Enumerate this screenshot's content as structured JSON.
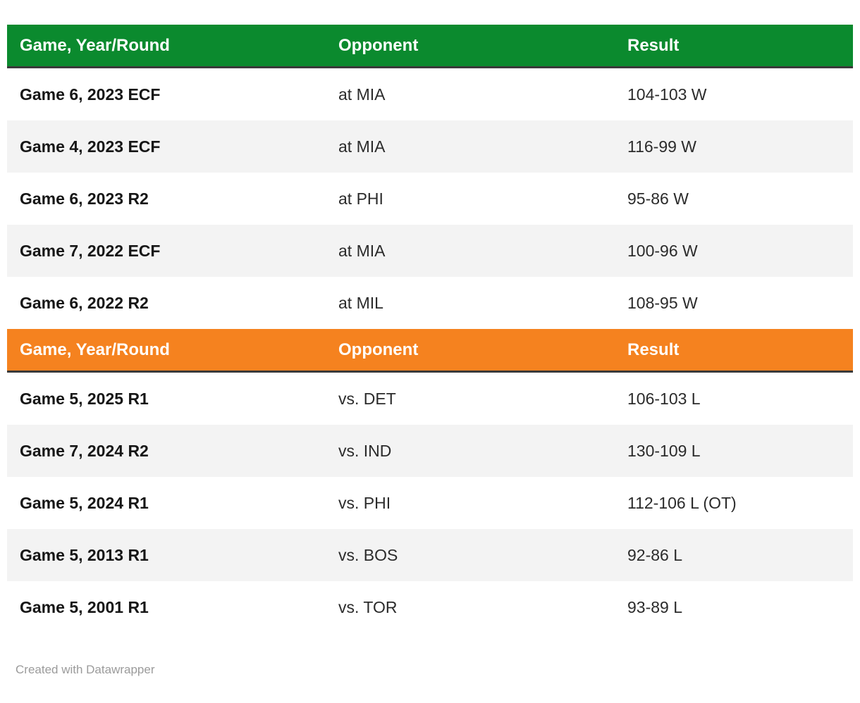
{
  "chart_data": [
    {
      "type": "table",
      "section": "wins",
      "header_color": "#0b8a2e",
      "columns": [
        "Game, Year/Round",
        "Opponent",
        "Result"
      ],
      "rows": [
        [
          "Game 6, 2023 ECF",
          "at MIA",
          "104-103 W"
        ],
        [
          "Game 4, 2023 ECF",
          "at MIA",
          "116-99 W"
        ],
        [
          "Game 6, 2023 R2",
          "at PHI",
          "95-86 W"
        ],
        [
          "Game 7, 2022 ECF",
          "at MIA",
          "100-96 W"
        ],
        [
          "Game 6, 2022 R2",
          "at MIL",
          "108-95 W"
        ]
      ]
    },
    {
      "type": "table",
      "section": "losses",
      "header_color": "#f5821f",
      "columns": [
        "Game, Year/Round",
        "Opponent",
        "Result"
      ],
      "rows": [
        [
          "Game 5, 2025 R1",
          "vs. DET",
          "106-103 L"
        ],
        [
          "Game 7, 2024 R2",
          "vs. IND",
          "130-109 L"
        ],
        [
          "Game 5, 2024 R1",
          "vs. PHI",
          "112-106 L (OT)"
        ],
        [
          "Game 5, 2013 R1",
          "vs. BOS",
          "92-86 L"
        ],
        [
          "Game 5, 2001 R1",
          "vs. TOR",
          "93-89 L"
        ]
      ]
    }
  ],
  "colors": {
    "wins_header": "#0b8a2e",
    "losses_header": "#f5821f",
    "alt_row": "#f3f3f3",
    "header_text": "#ffffff"
  },
  "footer": {
    "credit": "Created with Datawrapper"
  }
}
